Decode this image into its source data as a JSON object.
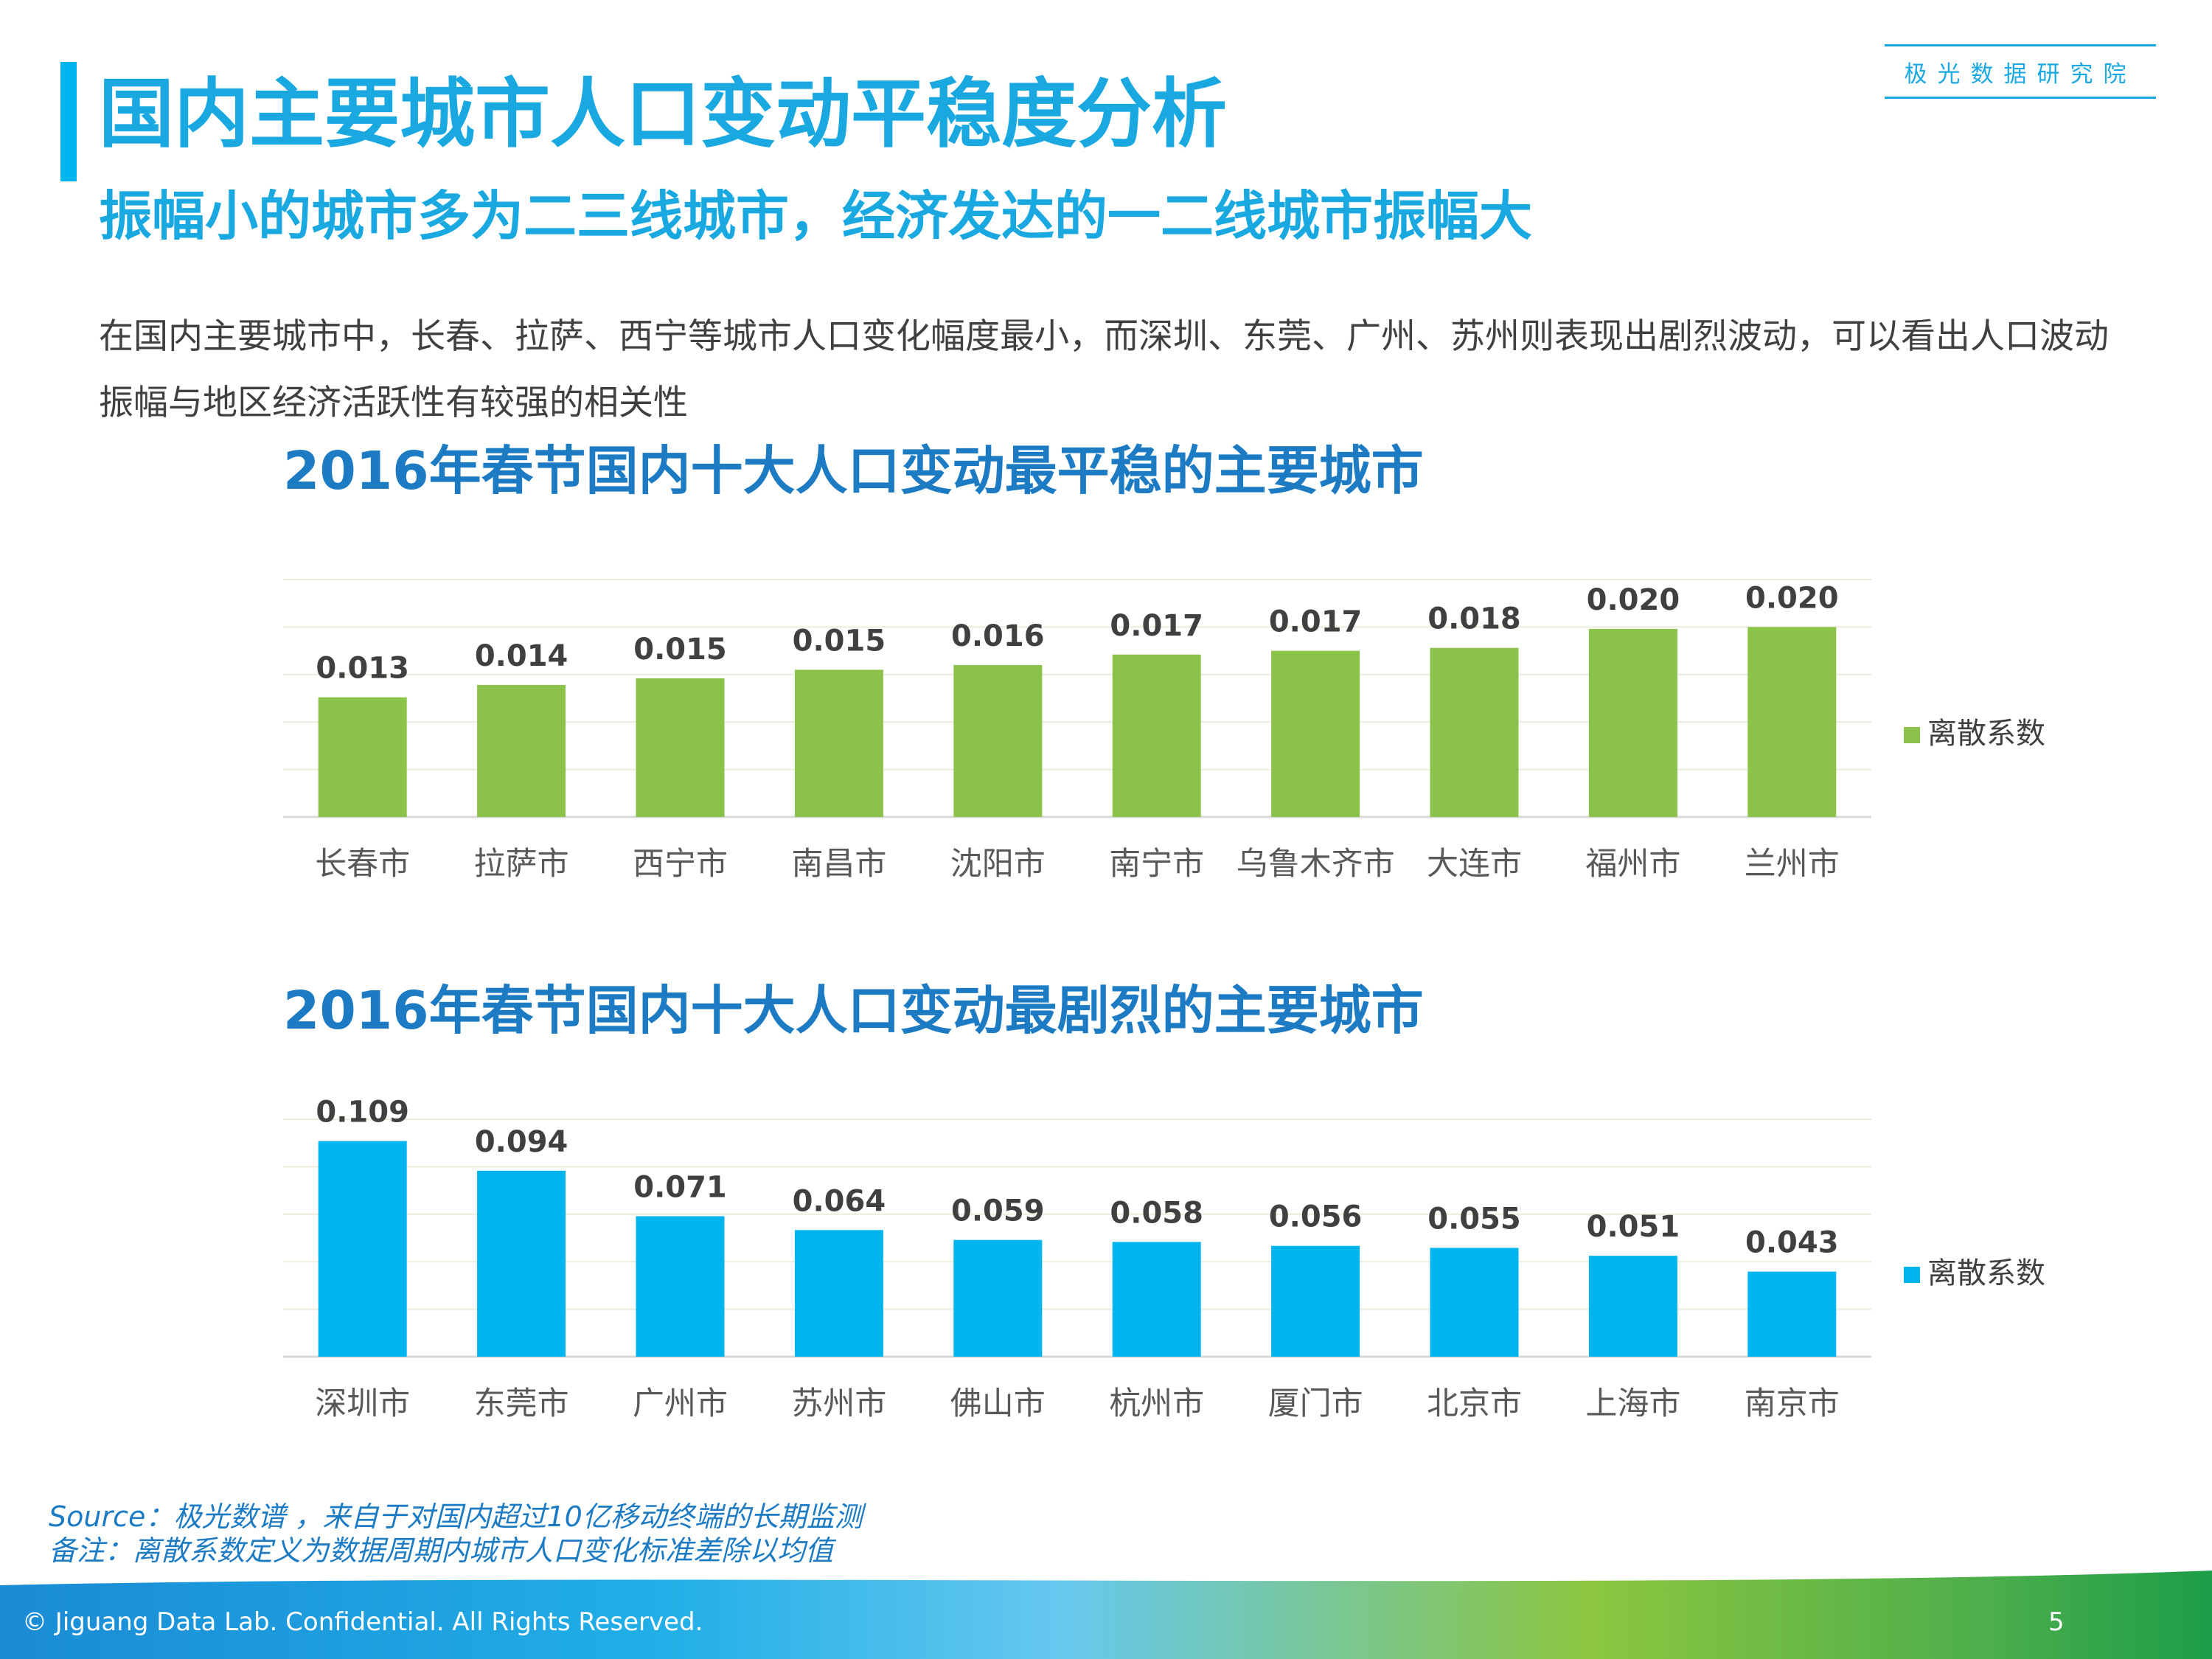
{
  "brand": "极光数据研究院",
  "title": "国内主要城市人口变动平稳度分析",
  "subtitle": "振幅小的城市多为二三线城市，经济发达的一二线城市振幅大",
  "description": "在国内主要城市中，长春、拉萨、西宁等城市人口变化幅度最小，而深圳、东莞、广州、苏州则表现出剧烈波动，可以看出人口波动振幅与地区经济活跃性有较强的相关性",
  "chart_data": [
    {
      "type": "bar",
      "title": "2016年春节国内十大人口变动最平稳的主要城市",
      "categories": [
        "长春市",
        "拉萨市",
        "西宁市",
        "南昌市",
        "沈阳市",
        "南宁市",
        "乌鲁木齐市",
        "大连市",
        "福州市",
        "兰州市"
      ],
      "series": [
        {
          "name": "离散系数",
          "values": [
            0.0126,
            0.0139,
            0.0146,
            0.0155,
            0.016,
            0.0171,
            0.0175,
            0.0178,
            0.0198,
            0.02
          ]
        }
      ],
      "labels": [
        "0.013",
        "0.014",
        "0.015",
        "0.015",
        "0.016",
        "0.017",
        "0.017",
        "0.018",
        "0.020",
        "0.020"
      ],
      "ylim": [
        0,
        0.025
      ],
      "grid": true,
      "legend": "right",
      "color": "#8bc34a"
    },
    {
      "type": "bar",
      "title": "2016年春节国内十大人口变动最剧烈的主要城市",
      "categories": [
        "深圳市",
        "东莞市",
        "广州市",
        "苏州市",
        "佛山市",
        "杭州市",
        "厦门市",
        "北京市",
        "上海市",
        "南京市"
      ],
      "series": [
        {
          "name": "离散系数",
          "values": [
            0.109,
            0.094,
            0.071,
            0.064,
            0.059,
            0.058,
            0.056,
            0.055,
            0.051,
            0.043
          ]
        }
      ],
      "labels": [
        "0.109",
        "0.094",
        "0.071",
        "0.064",
        "0.059",
        "0.058",
        "0.056",
        "0.055",
        "0.051",
        "0.043"
      ],
      "ylim": [
        0,
        0.12
      ],
      "grid": true,
      "legend": "right",
      "color": "#00b4ee"
    }
  ],
  "source_line1": "Source：极光数谱 ，来自于对国内超过10亿移动终端的长期监测",
  "source_line2": "备注：离散系数定义为数据周期内城市人口变化标准差除以均值",
  "copyright": "© Jiguang Data Lab. Confidential. All Rights Reserved.",
  "page_number": "5"
}
